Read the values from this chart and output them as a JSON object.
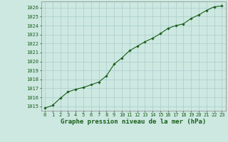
{
  "x": [
    0,
    1,
    2,
    3,
    4,
    5,
    6,
    7,
    8,
    9,
    10,
    11,
    12,
    13,
    14,
    15,
    16,
    17,
    18,
    19,
    20,
    21,
    22,
    23
  ],
  "y": [
    1014.8,
    1015.1,
    1015.9,
    1016.6,
    1016.9,
    1017.1,
    1017.4,
    1017.7,
    1018.4,
    1019.7,
    1020.4,
    1021.2,
    1021.7,
    1022.2,
    1022.6,
    1023.1,
    1023.7,
    1024.0,
    1024.2,
    1024.8,
    1025.2,
    1025.7,
    1026.1,
    1026.2
  ],
  "xlim": [
    -0.5,
    23.5
  ],
  "ylim": [
    1014.5,
    1026.7
  ],
  "yticks": [
    1015,
    1016,
    1017,
    1018,
    1019,
    1020,
    1021,
    1022,
    1023,
    1024,
    1025,
    1026
  ],
  "xticks": [
    0,
    1,
    2,
    3,
    4,
    5,
    6,
    7,
    8,
    9,
    10,
    11,
    12,
    13,
    14,
    15,
    16,
    17,
    18,
    19,
    20,
    21,
    22,
    23
  ],
  "xlabel": "Graphe pression niveau de la mer (hPa)",
  "line_color": "#1a5e1a",
  "marker": "D",
  "marker_size": 1.8,
  "linewidth": 0.8,
  "bg_color": "#cce8e0",
  "grid_color": "#aacccc",
  "tick_fontsize": 5.0,
  "xlabel_fontsize": 6.5,
  "title": ""
}
